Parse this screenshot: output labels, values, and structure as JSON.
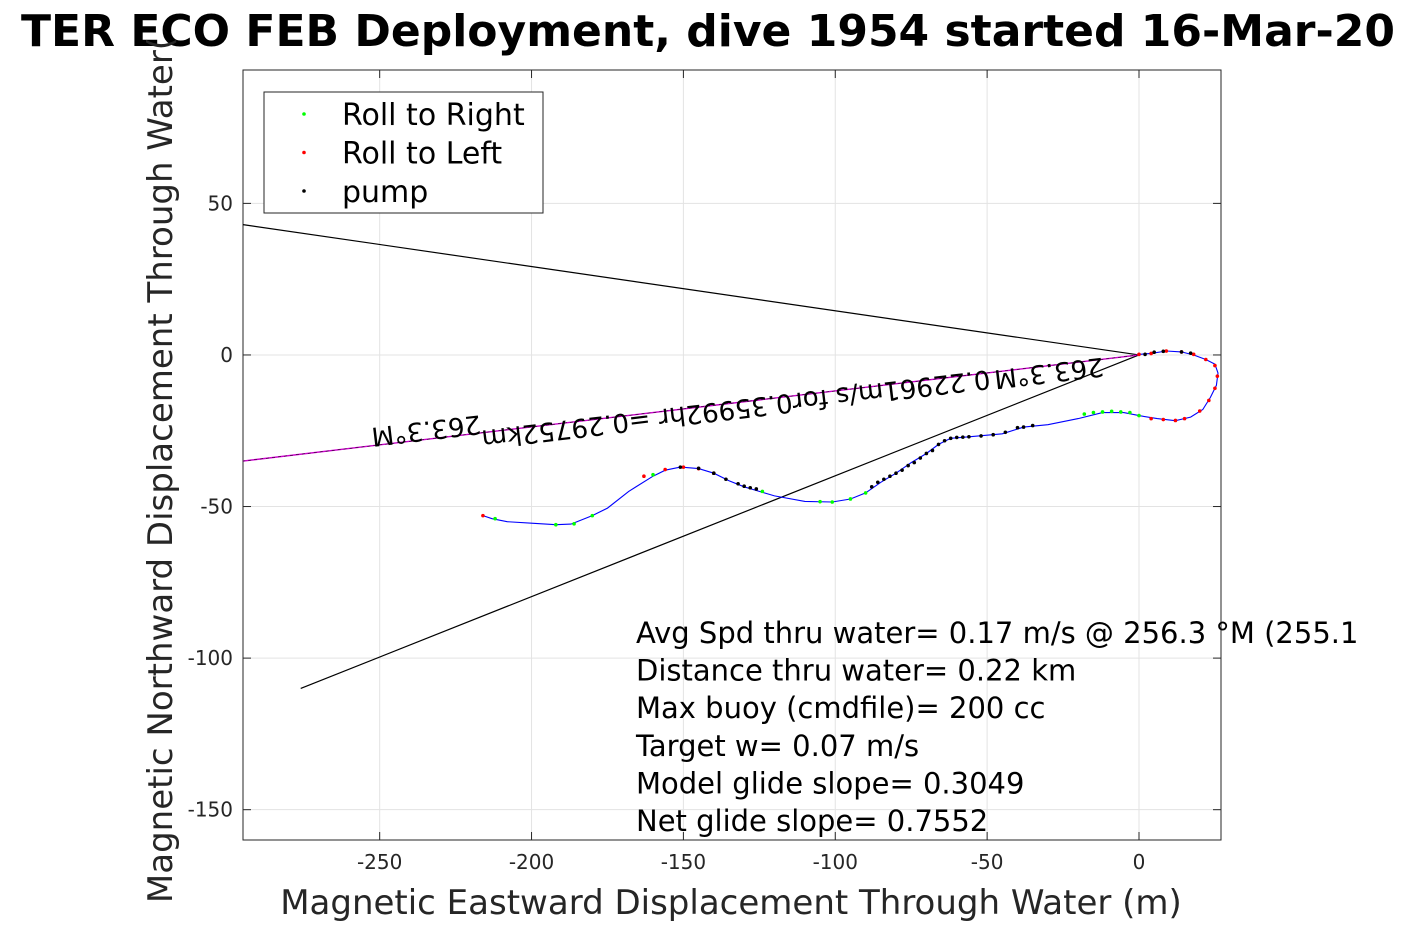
{
  "chart_data": {
    "type": "scatter",
    "title": "TER ECO FEB Deployment, dive 1954 started 16-Mar-20",
    "xlabel": "Magnetic Eastward Displacement Through Water (m)",
    "ylabel": "Magnetic Northward Displacement Through Water(",
    "xlim": [
      -295,
      27
    ],
    "ylim": [
      -160,
      94
    ],
    "xticks": [
      -250,
      -200,
      -150,
      -100,
      -50,
      0
    ],
    "yticks": [
      50,
      0,
      -50,
      -100,
      -150
    ],
    "grid": true,
    "legend_placement": "top-left",
    "legend": [
      {
        "label": "Roll to Right",
        "color": "#00ff00"
      },
      {
        "label": "Roll to Left",
        "color": "#ff0000"
      },
      {
        "label": "pump",
        "color": "#000000"
      }
    ],
    "colors": {
      "track": "#0000ff",
      "heading_line": "#cc00cc",
      "black": "#000000",
      "grid": "#e3e3e3"
    },
    "track": [
      [
        -216,
        -53
      ],
      [
        -213,
        -54
      ],
      [
        -208,
        -55
      ],
      [
        -200,
        -55.5
      ],
      [
        -192,
        -56
      ],
      [
        -187,
        -55.8
      ],
      [
        -180,
        -53
      ],
      [
        -175,
        -50.5
      ],
      [
        -168,
        -45
      ],
      [
        -160,
        -40
      ],
      [
        -156,
        -38
      ],
      [
        -151,
        -37
      ],
      [
        -145,
        -37.5
      ],
      [
        -140,
        -39
      ],
      [
        -135,
        -41.5
      ],
      [
        -130,
        -43.5
      ],
      [
        -125,
        -45
      ],
      [
        -120,
        -46.5
      ],
      [
        -110,
        -48.3
      ],
      [
        -101,
        -48.5
      ],
      [
        -95,
        -47.5
      ],
      [
        -90,
        -45.5
      ],
      [
        -85,
        -42
      ],
      [
        -80,
        -39
      ],
      [
        -75,
        -35.5
      ],
      [
        -70,
        -32.5
      ],
      [
        -66,
        -29.5
      ],
      [
        -62,
        -27.5
      ],
      [
        -56,
        -27
      ],
      [
        -45,
        -26
      ],
      [
        -38,
        -23.8
      ],
      [
        -30,
        -23
      ],
      [
        -20,
        -21
      ],
      [
        -12,
        -19
      ],
      [
        -5,
        -19
      ],
      [
        0,
        -20
      ],
      [
        6,
        -21
      ],
      [
        12,
        -21.7
      ],
      [
        17,
        -20.5
      ],
      [
        21,
        -18
      ],
      [
        23.5,
        -14
      ],
      [
        25.5,
        -10
      ],
      [
        26,
        -6
      ],
      [
        25,
        -3
      ],
      [
        22,
        -1.5
      ],
      [
        18,
        0
      ],
      [
        14,
        1
      ],
      [
        9,
        1.3
      ],
      [
        4,
        0.5
      ],
      [
        0,
        0.2
      ]
    ],
    "markers": {
      "roll_right": [
        [
          -212,
          -54
        ],
        [
          -192,
          -56
        ],
        [
          -186,
          -55.7
        ],
        [
          -180,
          -53
        ],
        [
          -160,
          -39.5
        ],
        [
          -140,
          -39
        ],
        [
          -124,
          -45
        ],
        [
          -105,
          -48.4
        ],
        [
          -101,
          -48.5
        ],
        [
          -95,
          -47.5
        ],
        [
          -90,
          -45.5
        ],
        [
          -18,
          -19.5
        ],
        [
          -15,
          -19
        ],
        [
          -12,
          -18.8
        ],
        [
          -9,
          -18.6
        ],
        [
          -6,
          -18.8
        ],
        [
          -3,
          -19
        ],
        [
          0,
          -20
        ]
      ],
      "roll_left": [
        [
          -216,
          -53
        ],
        [
          -163,
          -40
        ],
        [
          -156,
          -37.8
        ],
        [
          -150,
          -37
        ],
        [
          -145,
          -37.5
        ],
        [
          -140,
          -39
        ],
        [
          4,
          -21
        ],
        [
          8,
          -21.3
        ],
        [
          12,
          -21.6
        ],
        [
          15,
          -21
        ],
        [
          20,
          -18.5
        ],
        [
          23,
          -15
        ],
        [
          25,
          -11
        ],
        [
          25.8,
          -7
        ],
        [
          25,
          -3.5
        ],
        [
          22,
          -1.5
        ],
        [
          18,
          0.2
        ],
        [
          14,
          1
        ],
        [
          9,
          1.3
        ],
        [
          4,
          0.5
        ],
        [
          0,
          0.2
        ]
      ],
      "pump": [
        [
          -151,
          -37
        ],
        [
          -145,
          -37.4
        ],
        [
          -140,
          -39
        ],
        [
          -136,
          -41
        ],
        [
          -132,
          -42.5
        ],
        [
          -130,
          -43.3
        ],
        [
          -128,
          -43.8
        ],
        [
          -126,
          -44.2
        ],
        [
          -88,
          -43.5
        ],
        [
          -86,
          -42
        ],
        [
          -84,
          -41
        ],
        [
          -82,
          -40
        ],
        [
          -80,
          -39
        ],
        [
          -78,
          -38
        ],
        [
          -76,
          -36.5
        ],
        [
          -74,
          -35.5
        ],
        [
          -72,
          -34
        ],
        [
          -70,
          -32.5
        ],
        [
          -68,
          -31.5
        ],
        [
          -66,
          -29.5
        ],
        [
          -64,
          -28.3
        ],
        [
          -62,
          -27.5
        ],
        [
          -60,
          -27.2
        ],
        [
          -58,
          -27.1
        ],
        [
          -56,
          -27
        ],
        [
          -52,
          -26.7
        ],
        [
          -48,
          -26.3
        ],
        [
          -44,
          -25.5
        ],
        [
          -40,
          -24
        ],
        [
          -38,
          -23.8
        ],
        [
          -35,
          -23.3
        ],
        [
          2,
          0.2
        ],
        [
          5,
          0.9
        ],
        [
          8,
          1.2
        ],
        [
          14,
          1
        ],
        [
          17,
          0.6
        ]
      ]
    },
    "heading_line_deg": 263.3,
    "heading_line_points": [
      [
        0,
        0
      ],
      [
        -295,
        -35
      ]
    ],
    "black_lines": [
      {
        "points": [
          [
            0,
            0
          ],
          [
            -295,
            43
          ]
        ]
      },
      {
        "points": [
          [
            0,
            0
          ],
          [
            -276,
            -110
          ]
        ]
      }
    ],
    "rotated_labels": [
      {
        "text": "263.3°M",
        "x": -235,
        "y": -22,
        "rotate_deg": 173.2
      },
      {
        "text": "0.22961m/s for0.35992hr =0.29752km",
        "x": -133,
        "y": -15,
        "rotate_deg": 173.2
      },
      {
        "text": "263.3°M",
        "x": -30,
        "y": -3,
        "rotate_deg": 173.2
      }
    ],
    "annotations": [
      "Avg Spd thru water=  0.17 m/s @ 256.3 °M (255.1",
      "Distance thru water=  0.22 km",
      "Max buoy (cmdfile)= 200 cc",
      "Target w= 0.07 m/s",
      "Model glide slope= 0.3049",
      "Net glide slope= 0.7552"
    ]
  }
}
